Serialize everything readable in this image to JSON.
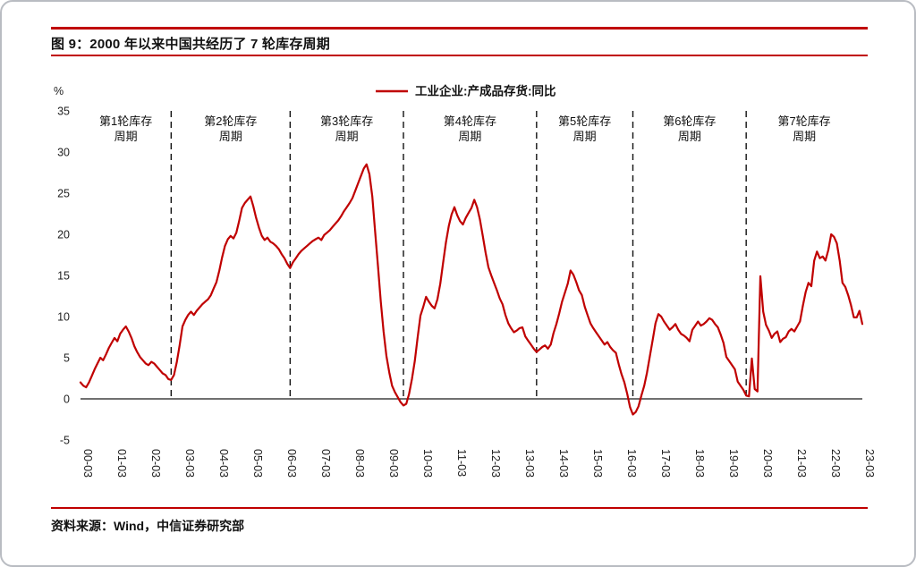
{
  "page": {
    "title": "图 9：2000 年以来中国共经历了 7 轮库存周期",
    "source": "资料来源：Wind，中信证券研究部",
    "accent_color": "#c00000"
  },
  "chart_data": {
    "type": "line",
    "title": "图 9：2000 年以来中国共经历了 7 轮库存周期",
    "unit_label": "%",
    "legend_position": "top",
    "line_color": "#c00000",
    "grid": false,
    "ylim": [
      -5,
      35
    ],
    "y_ticks": [
      35,
      30,
      25,
      20,
      15,
      10,
      5,
      0,
      -5
    ],
    "x_start": "2000-03",
    "x_frequency": "monthly",
    "x_tick_every_months": 12,
    "x_tick_labels": [
      "00-03",
      "01-03",
      "02-03",
      "03-03",
      "04-03",
      "05-03",
      "06-03",
      "07-03",
      "08-03",
      "09-03",
      "10-03",
      "11-03",
      "12-03",
      "13-03",
      "14-03",
      "15-03",
      "16-03",
      "17-03",
      "18-03",
      "19-03",
      "20-03",
      "21-03",
      "22-03",
      "23-03"
    ],
    "series": [
      {
        "name": "工业企业:产成品存货:同比",
        "values": [
          2.0,
          1.6,
          1.4,
          2.0,
          2.8,
          3.6,
          4.3,
          5.0,
          4.7,
          5.4,
          6.2,
          6.8,
          7.4,
          7.0,
          7.9,
          8.4,
          8.8,
          8.2,
          7.4,
          6.4,
          5.7,
          5.1,
          4.7,
          4.3,
          4.1,
          4.5,
          4.3,
          3.9,
          3.5,
          3.1,
          2.9,
          2.4,
          2.3,
          2.9,
          4.5,
          6.5,
          8.8,
          9.6,
          10.2,
          10.6,
          10.2,
          10.7,
          11.1,
          11.5,
          11.8,
          12.1,
          12.6,
          13.4,
          14.2,
          15.6,
          17.2,
          18.6,
          19.4,
          19.8,
          19.5,
          20.2,
          21.6,
          23.2,
          23.8,
          24.2,
          24.6,
          23.4,
          22.0,
          20.8,
          19.8,
          19.3,
          19.6,
          19.1,
          18.9,
          18.6,
          18.2,
          17.6,
          17.1,
          16.4,
          15.9,
          16.6,
          17.1,
          17.6,
          18.0,
          18.3,
          18.6,
          18.9,
          19.2,
          19.4,
          19.6,
          19.3,
          19.9,
          20.2,
          20.5,
          20.9,
          21.3,
          21.7,
          22.2,
          22.8,
          23.3,
          23.8,
          24.4,
          25.3,
          26.2,
          27.1,
          28.0,
          28.5,
          27.3,
          24.6,
          20.4,
          16.2,
          11.8,
          8.2,
          5.2,
          3.2,
          1.6,
          0.8,
          0.2,
          -0.4,
          -0.8,
          -0.6,
          0.6,
          2.4,
          4.6,
          7.4,
          10.1,
          11.2,
          12.4,
          11.8,
          11.3,
          11.0,
          12.1,
          14.0,
          16.5,
          19.0,
          21.0,
          22.4,
          23.3,
          22.3,
          21.6,
          21.2,
          22.0,
          22.6,
          23.2,
          24.2,
          23.3,
          21.8,
          19.8,
          17.8,
          16.0,
          15.0,
          14.1,
          13.2,
          12.2,
          11.5,
          10.2,
          9.2,
          8.6,
          8.1,
          8.3,
          8.6,
          8.7,
          7.6,
          7.1,
          6.6,
          6.1,
          5.7,
          6.0,
          6.3,
          6.5,
          6.1,
          6.6,
          8.0,
          9.1,
          10.4,
          11.8,
          12.9,
          14.0,
          15.6,
          15.1,
          14.2,
          13.2,
          12.6,
          11.2,
          10.2,
          9.2,
          8.6,
          8.1,
          7.6,
          7.1,
          6.6,
          6.9,
          6.3,
          5.9,
          5.6,
          4.2,
          3.0,
          2.0,
          0.6,
          -1.0,
          -1.9,
          -1.6,
          -0.9,
          0.4,
          1.6,
          3.2,
          5.2,
          7.2,
          9.2,
          10.3,
          10.0,
          9.4,
          8.9,
          8.4,
          8.7,
          9.1,
          8.4,
          7.9,
          7.7,
          7.4,
          7.0,
          8.4,
          8.9,
          9.4,
          8.9,
          9.1,
          9.4,
          9.8,
          9.6,
          9.1,
          8.7,
          7.8,
          6.8,
          5.1,
          4.6,
          4.1,
          3.6,
          2.1,
          1.6,
          1.1,
          0.4,
          0.3,
          4.9,
          1.2,
          0.9,
          14.9,
          10.6,
          9.0,
          8.3,
          7.4,
          7.9,
          8.2,
          6.9,
          7.3,
          7.5,
          8.2,
          8.5,
          8.2,
          8.8,
          9.4,
          11.3,
          13.0,
          14.1,
          13.7,
          16.8,
          17.9,
          17.1,
          17.3,
          16.8,
          18.1,
          20.0,
          19.7,
          18.9,
          16.8,
          14.1,
          13.6,
          12.6,
          11.4,
          9.9,
          9.9,
          10.7,
          9.1
        ]
      }
    ],
    "annotations": {
      "cycle_labels": [
        "第1轮库存周期",
        "第2轮库存周期",
        "第3轮库存周期",
        "第4轮库存周期",
        "第5轮库存周期",
        "第6轮库存周期",
        "第7轮库存周期"
      ],
      "boundary_month_indices": [
        32,
        74,
        114,
        161,
        195,
        235
      ],
      "boundary_dates": [
        "2002-11",
        "2006-05",
        "2009-09",
        "2013-08",
        "2016-06",
        "2019-10"
      ]
    }
  }
}
